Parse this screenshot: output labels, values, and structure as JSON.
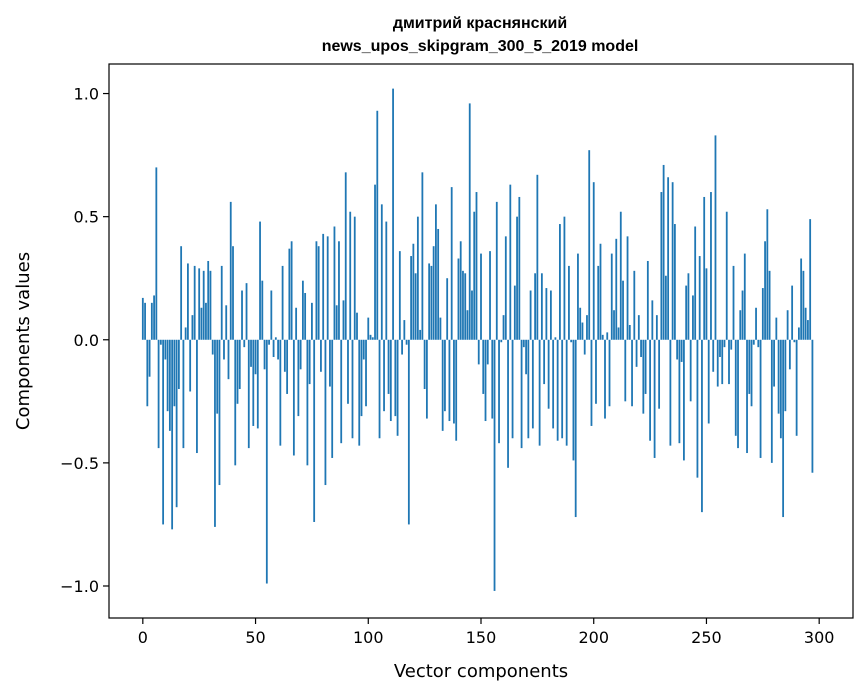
{
  "chart_data": {
    "type": "bar",
    "title_line1": "дмитрий краснянский",
    "title_line2": "news_upos_skipgram_300_5_2019 model",
    "xlabel": "Vector components",
    "ylabel": "Components values",
    "xlim": [
      -15,
      315
    ],
    "ylim": [
      -1.13,
      1.12
    ],
    "xticks": [
      0,
      50,
      100,
      150,
      200,
      250,
      300
    ],
    "yticks": [
      -1.0,
      -0.5,
      0.0,
      0.5,
      1.0
    ],
    "ytick_labels": [
      "−1.0",
      "−0.5",
      "0.0",
      "0.5",
      "1.0"
    ],
    "bar_color": "#1f77b4",
    "grid": false,
    "values": [
      0.17,
      0.15,
      -0.27,
      -0.15,
      0.15,
      0.18,
      0.7,
      -0.44,
      -0.02,
      -0.75,
      -0.08,
      -0.29,
      -0.37,
      -0.77,
      -0.27,
      -0.68,
      -0.2,
      0.38,
      -0.44,
      0.05,
      0.31,
      -0.21,
      0.1,
      0.3,
      -0.46,
      0.29,
      0.13,
      0.28,
      0.15,
      0.32,
      0.28,
      -0.06,
      -0.76,
      -0.3,
      -0.59,
      0.3,
      -0.08,
      0.14,
      -0.16,
      0.56,
      0.38,
      -0.51,
      -0.26,
      -0.2,
      0.2,
      -0.03,
      0.23,
      -0.44,
      -0.11,
      -0.35,
      -0.14,
      -0.36,
      0.48,
      0.24,
      -0.12,
      -0.99,
      -0.02,
      0.2,
      -0.07,
      0.01,
      -0.08,
      -0.43,
      0.3,
      -0.13,
      -0.22,
      0.37,
      0.4,
      -0.47,
      0.13,
      -0.31,
      -0.12,
      0.24,
      0.19,
      -0.51,
      -0.18,
      0.15,
      -0.74,
      0.4,
      0.38,
      -0.13,
      0.43,
      -0.59,
      0.42,
      -0.19,
      -0.48,
      0.46,
      0.14,
      0.4,
      -0.42,
      0.16,
      0.68,
      -0.26,
      0.52,
      -0.4,
      0.5,
      0.11,
      -0.43,
      -0.31,
      -0.08,
      -0.27,
      0.09,
      0.02,
      0.01,
      0.63,
      0.93,
      -0.4,
      0.55,
      -0.29,
      0.48,
      -0.22,
      -0.33,
      1.02,
      -0.31,
      -0.39,
      0.36,
      -0.06,
      0.08,
      -0.02,
      -0.75,
      0.34,
      0.39,
      0.27,
      0.5,
      0.04,
      0.68,
      -0.2,
      -0.32,
      0.31,
      0.3,
      0.38,
      0.55,
      0.45,
      0.09,
      -0.37,
      -0.29,
      0.25,
      -0.33,
      0.62,
      -0.34,
      -0.41,
      0.33,
      0.4,
      0.28,
      0.27,
      0.12,
      0.96,
      0.2,
      0.52,
      0.6,
      -0.1,
      0.35,
      -0.22,
      -0.33,
      -0.1,
      0.36,
      -0.32,
      -1.02,
      0.56,
      -0.42,
      -0.01,
      0.1,
      0.42,
      -0.52,
      0.63,
      -0.4,
      0.22,
      0.5,
      0.58,
      -0.44,
      -0.03,
      -0.14,
      -0.4,
      0.2,
      -0.36,
      0.27,
      0.67,
      -0.43,
      0.27,
      -0.18,
      0.21,
      -0.28,
      0.2,
      -0.36,
      0.01,
      -0.41,
      0.47,
      -0.4,
      0.5,
      -0.43,
      0.3,
      -0.01,
      -0.49,
      -0.72,
      0.35,
      0.13,
      0.07,
      -0.06,
      0.1,
      0.77,
      -0.35,
      0.64,
      -0.26,
      0.3,
      0.39,
      0.02,
      -0.32,
      0.03,
      -0.27,
      0.35,
      0.12,
      0.41,
      0.05,
      0.52,
      0.24,
      -0.25,
      0.42,
      0.06,
      -0.27,
      0.28,
      -0.11,
      0.1,
      -0.07,
      -0.3,
      -0.22,
      0.32,
      -0.41,
      0.16,
      -0.48,
      0.1,
      -0.28,
      0.6,
      0.71,
      0.26,
      0.66,
      -0.43,
      0.64,
      0.47,
      -0.08,
      -0.42,
      -0.09,
      -0.49,
      0.22,
      0.27,
      -0.25,
      0.18,
      0.46,
      -0.56,
      0.34,
      -0.7,
      0.58,
      0.29,
      -0.34,
      0.6,
      -0.13,
      0.83,
      -0.19,
      -0.07,
      -0.18,
      -0.03,
      0.52,
      -0.18,
      -0.04,
      0.3,
      -0.39,
      -0.44,
      0.12,
      0.2,
      0.35,
      -0.46,
      -0.22,
      -0.27,
      -0.02,
      0.13,
      -0.03,
      -0.48,
      0.21,
      0.4,
      0.53,
      0.28,
      -0.5,
      -0.19,
      0.09,
      -0.3,
      -0.4,
      -0.72,
      -0.29,
      0.12,
      -0.12,
      0.22,
      -0.01,
      -0.39,
      0.05,
      0.33,
      0.28,
      0.13,
      0.08,
      0.49,
      -0.54
    ]
  }
}
